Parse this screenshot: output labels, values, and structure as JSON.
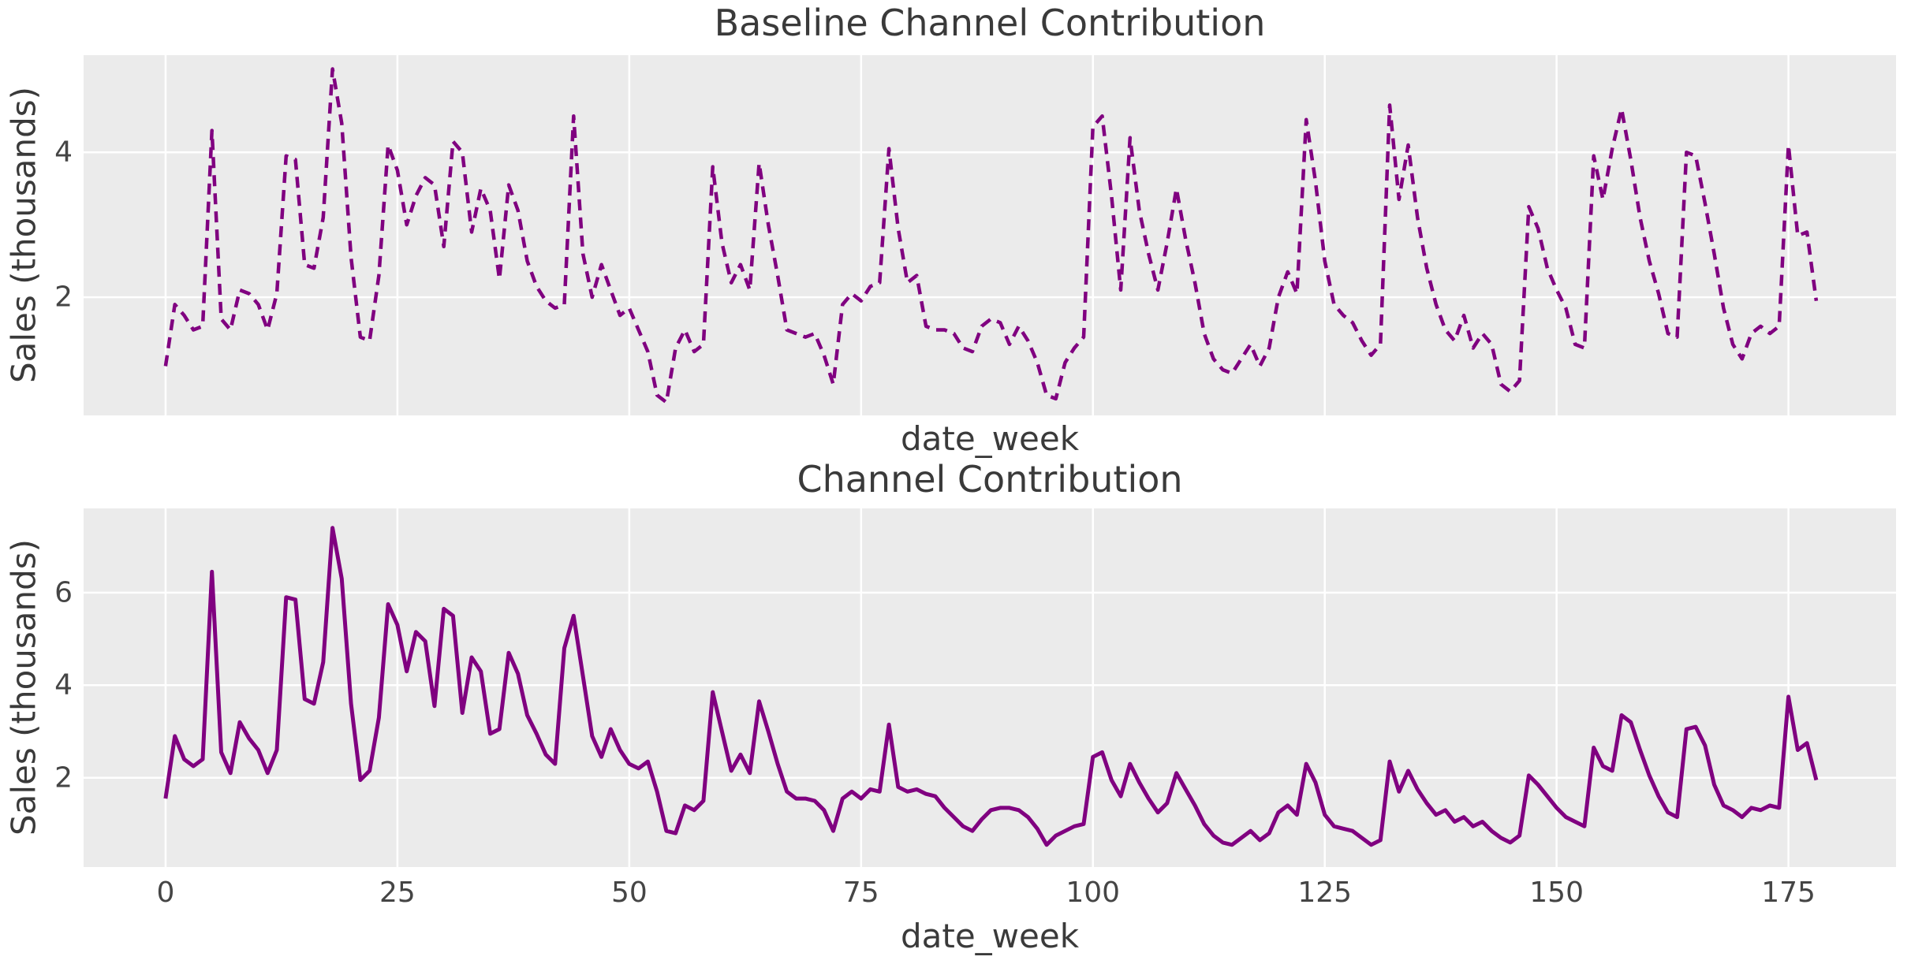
{
  "figure": {
    "background_color": "#ffffff",
    "axes_background_color": "#ebebeb",
    "grid_color": "#ffffff",
    "text_color": "#3a3a3a",
    "accent_color": "#800080"
  },
  "chart_data": [
    {
      "type": "line",
      "title": "Baseline Channel Contribution",
      "xlabel": "date_week",
      "ylabel": "Sales (thousands)",
      "line_color": "#800080",
      "line_style": "dashed",
      "line_width": 4.5,
      "grid": "on",
      "legend": "none",
      "xlim": [
        -8.84,
        186.6
      ],
      "ylim": [
        0.37,
        5.34
      ],
      "xticks": [
        0,
        25,
        50,
        75,
        100,
        125,
        150,
        175
      ],
      "yticks": [
        2,
        4
      ],
      "show_xticklabels": false,
      "x_start_week": 0,
      "x": "weeks 0..178 (index = week)",
      "values": [
        1.05,
        1.9,
        1.75,
        1.55,
        1.6,
        4.3,
        1.7,
        1.55,
        2.1,
        2.05,
        1.9,
        1.55,
        2.05,
        3.95,
        3.9,
        2.45,
        2.4,
        3.1,
        5.15,
        4.4,
        2.55,
        1.45,
        1.4,
        2.3,
        4.1,
        3.75,
        3.0,
        3.4,
        3.65,
        3.55,
        2.7,
        4.15,
        4.0,
        2.9,
        3.5,
        3.2,
        2.25,
        3.55,
        3.2,
        2.5,
        2.15,
        1.95,
        1.85,
        1.9,
        4.5,
        2.6,
        2.0,
        2.45,
        2.1,
        1.75,
        1.85,
        1.55,
        1.25,
        0.65,
        0.55,
        1.3,
        1.55,
        1.25,
        1.35,
        3.8,
        2.75,
        2.2,
        2.45,
        2.1,
        3.85,
        3.0,
        2.3,
        1.55,
        1.5,
        1.45,
        1.5,
        1.2,
        0.8,
        1.9,
        2.05,
        1.95,
        2.15,
        2.2,
        4.05,
        2.95,
        2.2,
        2.3,
        1.6,
        1.55,
        1.55,
        1.5,
        1.3,
        1.25,
        1.6,
        1.7,
        1.65,
        1.35,
        1.6,
        1.4,
        1.1,
        0.65,
        0.6,
        1.1,
        1.3,
        1.45,
        4.35,
        4.5,
        3.4,
        2.1,
        4.2,
        3.2,
        2.6,
        2.1,
        2.75,
        3.5,
        2.8,
        2.2,
        1.5,
        1.15,
        1.0,
        0.95,
        1.15,
        1.35,
        1.05,
        1.3,
        2.0,
        2.35,
        2.05,
        4.45,
        3.6,
        2.5,
        1.9,
        1.75,
        1.65,
        1.4,
        1.2,
        1.35,
        4.65,
        3.35,
        4.1,
        3.1,
        2.4,
        1.9,
        1.55,
        1.4,
        1.75,
        1.3,
        1.5,
        1.35,
        0.8,
        0.7,
        0.85,
        3.25,
        2.95,
        2.4,
        2.1,
        1.85,
        1.35,
        1.3,
        3.95,
        3.35,
        4.05,
        4.6,
        3.9,
        3.1,
        2.5,
        2.05,
        1.5,
        1.45,
        4.0,
        3.95,
        3.3,
        2.6,
        1.85,
        1.35,
        1.15,
        1.5,
        1.6,
        1.5,
        1.6,
        4.1,
        2.85,
        2.9,
        1.95
      ]
    },
    {
      "type": "line",
      "title": "Channel Contribution",
      "xlabel": "date_week",
      "ylabel": "Sales (thousands)",
      "line_color": "#800080",
      "line_style": "solid",
      "line_width": 5,
      "grid": "on",
      "legend": "none",
      "xlim": [
        -8.84,
        186.6
      ],
      "ylim": [
        0.07,
        7.82
      ],
      "xticks": [
        0,
        25,
        50,
        75,
        100,
        125,
        150,
        175
      ],
      "yticks": [
        2,
        4,
        6
      ],
      "show_xticklabels": true,
      "x_start_week": 0,
      "x": "weeks 0..178 (index = week)",
      "values": [
        1.55,
        2.9,
        2.4,
        2.25,
        2.4,
        6.45,
        2.55,
        2.1,
        3.2,
        2.85,
        2.6,
        2.1,
        2.6,
        5.9,
        5.85,
        3.7,
        3.6,
        4.5,
        7.4,
        6.3,
        3.6,
        1.95,
        2.15,
        3.3,
        5.75,
        5.3,
        4.3,
        5.15,
        4.95,
        3.55,
        5.65,
        5.5,
        3.4,
        4.6,
        4.3,
        2.95,
        3.05,
        4.7,
        4.25,
        3.35,
        2.95,
        2.5,
        2.3,
        4.8,
        5.5,
        4.2,
        2.9,
        2.45,
        3.05,
        2.6,
        2.3,
        2.2,
        2.35,
        1.7,
        0.85,
        0.8,
        1.4,
        1.3,
        1.5,
        3.85,
        3.0,
        2.15,
        2.5,
        2.1,
        3.65,
        3.0,
        2.3,
        1.7,
        1.55,
        1.55,
        1.5,
        1.3,
        0.85,
        1.55,
        1.7,
        1.55,
        1.75,
        1.7,
        3.15,
        1.8,
        1.7,
        1.75,
        1.65,
        1.6,
        1.35,
        1.15,
        0.95,
        0.85,
        1.1,
        1.3,
        1.35,
        1.35,
        1.3,
        1.15,
        0.9,
        0.55,
        0.75,
        0.85,
        0.95,
        1.0,
        2.45,
        2.55,
        1.95,
        1.6,
        2.3,
        1.9,
        1.55,
        1.25,
        1.45,
        2.1,
        1.75,
        1.4,
        1.0,
        0.75,
        0.6,
        0.55,
        0.7,
        0.85,
        0.65,
        0.8,
        1.25,
        1.4,
        1.2,
        2.3,
        1.9,
        1.2,
        0.95,
        0.9,
        0.85,
        0.7,
        0.55,
        0.65,
        2.35,
        1.7,
        2.15,
        1.75,
        1.45,
        1.2,
        1.3,
        1.05,
        1.15,
        0.95,
        1.05,
        0.85,
        0.7,
        0.6,
        0.75,
        2.05,
        1.85,
        1.6,
        1.35,
        1.15,
        1.05,
        0.95,
        2.65,
        2.25,
        2.15,
        3.35,
        3.2,
        2.6,
        2.05,
        1.6,
        1.25,
        1.15,
        3.05,
        3.1,
        2.7,
        1.85,
        1.4,
        1.3,
        1.15,
        1.35,
        1.3,
        1.4,
        1.35,
        3.75,
        2.6,
        2.75,
        1.95
      ]
    }
  ]
}
